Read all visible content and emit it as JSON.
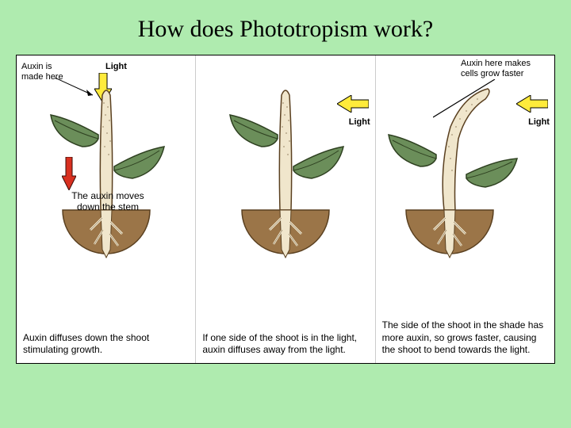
{
  "title": "How does Phototropism work?",
  "colors": {
    "page_bg": "#afebaf",
    "diagram_bg": "#ffffff",
    "leaf_fill": "#6b8e5a",
    "leaf_stroke": "#2e4020",
    "stem_fill": "#f0e6cc",
    "stem_stroke": "#5a4020",
    "soil_fill": "#9b7548",
    "soil_stroke": "#5a4020",
    "root_fill": "#f0e6cc",
    "arrow_yellow_fill": "#ffeb3b",
    "arrow_yellow_stroke": "#000000",
    "arrow_red_fill": "#d93020",
    "arrow_red_stroke": "#3a0d08"
  },
  "type": "infographic",
  "panels": [
    {
      "topLabel1": "Auxin is\nmade here",
      "lightLabel": "Light",
      "lightDir": "down",
      "midLabel": "The auxin moves\ndown the stem",
      "redArrow": true,
      "bend": false,
      "caption": "Auxin diffuses down the shoot stimulating growth."
    },
    {
      "lightLabel": "Light",
      "lightDir": "left",
      "bend": false,
      "caption": "If one side of the shoot is in the light, auxin diffuses away from the light."
    },
    {
      "topLabel1": "Auxin here makes\ncells grow faster",
      "lightLabel": "Light",
      "lightDir": "left",
      "bend": true,
      "indicatorLine": true,
      "caption": "The side of the shoot in the shade has more auxin, so grows faster, causing the shoot to bend towards the light."
    }
  ]
}
